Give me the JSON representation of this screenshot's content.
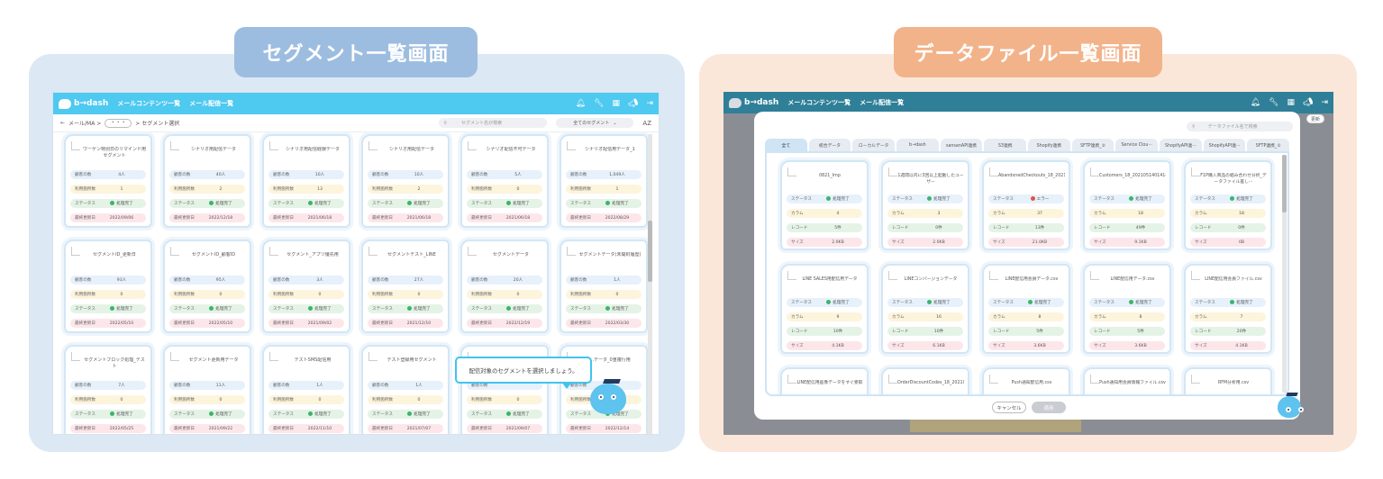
{
  "labels": {
    "left_title": "セグメント一覧画面",
    "right_title": "データファイル一覧画面"
  },
  "left_screen": {
    "brand": "b→dash",
    "nav": [
      "メールコンテンツ一覧",
      "メール配信一覧"
    ],
    "breadcrumb": {
      "back": "←",
      "path1": "メール/MA >",
      "dots": "・・・",
      "path2": "> セグメント選択"
    },
    "search_placeholder": "セグメント名が検索",
    "filter_value": "全てのセグメント",
    "sort_label": "AZ",
    "row_labels": {
      "count": "顧客の数",
      "usage": "利用箇所数",
      "status": "ステータス",
      "updated": "最終更新日"
    },
    "cards": [
      {
        "name": "ワーゲン特別日のリマインド用セグメント",
        "count": "4人",
        "usage": "1",
        "status": "処理完了",
        "updated": "2022/09/06"
      },
      {
        "name": "シナリオ用配信データ",
        "count": "40人",
        "usage": "2",
        "status": "処理完了",
        "updated": "2022/12/18"
      },
      {
        "name": "シナリオ用配信経験データ",
        "count": "10人",
        "usage": "13",
        "status": "処理完了",
        "updated": "2021/06/18"
      },
      {
        "name": "シナリオ用配信データ",
        "count": "10人",
        "usage": "2",
        "status": "処理完了",
        "updated": "2021/06/18"
      },
      {
        "name": "シナリオ配信不可データ",
        "count": "5人",
        "usage": "0",
        "status": "処理完了",
        "updated": "2021/06/18"
      },
      {
        "name": "シナリオ配信用データ_1",
        "count": "1,049人",
        "usage": "1",
        "status": "処理完了",
        "updated": "2022/08/29"
      },
      {
        "name": "セグメントID_更新日",
        "count": "93人",
        "usage": "0",
        "status": "処理完了",
        "updated": "2022/05/10"
      },
      {
        "name": "セグメントID_顧客ID",
        "count": "95人",
        "usage": "0",
        "status": "処理完了",
        "updated": "2022/05/10"
      },
      {
        "name": "セグメント_アプリ優先用",
        "count": "3人",
        "usage": "0",
        "status": "処理完了",
        "updated": "2021/09/02"
      },
      {
        "name": "セグメントテスト_LINE",
        "count": "27人",
        "usage": "0",
        "status": "処理完了",
        "updated": "2021/12/10"
      },
      {
        "name": "セグメントデータ",
        "count": "20人",
        "usage": "0",
        "status": "処理完了",
        "updated": "2022/12/19"
      },
      {
        "name": "セグメントデータ(未開封履歴)",
        "count": "1人",
        "usage": "0",
        "status": "処理完了",
        "updated": "2022/03/30"
      },
      {
        "name": "セグメントブロック処理_テスト",
        "count": "7人",
        "usage": "0",
        "status": "処理完了",
        "updated": "2022/05/25"
      },
      {
        "name": "セグメント更新用データ",
        "count": "11人",
        "usage": "0",
        "status": "処理完了",
        "updated": "2021/09/22"
      },
      {
        "name": "テストSMS配信用",
        "count": "1人",
        "usage": "0",
        "status": "処理完了",
        "updated": "2022/11/10"
      },
      {
        "name": "テスト登録用セグメント",
        "count": "1人",
        "usage": "0",
        "status": "処理完了",
        "updated": "2021/07/07"
      },
      {
        "name": "",
        "count": "",
        "usage": "0",
        "status": "処理完了",
        "updated": "2021/09/07"
      },
      {
        "name": "...データ_0重複行用",
        "count": "",
        "usage": "",
        "status": "処理完了",
        "updated": "2022/12/14"
      }
    ],
    "tooltip": "配信対象のセグメントを選択しましょう。"
  },
  "right_screen": {
    "brand": "b→dash",
    "nav": [
      "メールコンテンツ一覧",
      "メール配信一覧"
    ],
    "bg_button": "更新",
    "search_placeholder": "データファイル名で検索",
    "tabs": [
      "全て",
      "統合データ",
      "ローカルデータ",
      "b→dash",
      "sansanAPI連携",
      "S3連携",
      "Shopify連携",
      "SFTP連携_②",
      "Service Clou···",
      "ShopifyAPI連···",
      "ShopifyAPI連···",
      "SFTP連携_①"
    ],
    "row_labels": {
      "status": "ステータス",
      "columns": "カラム",
      "records": "レコード",
      "size": "サイズ"
    },
    "cards": [
      {
        "name": "0821_Imp",
        "status": "処理完了",
        "status_type": "ok",
        "columns": "4",
        "records": "5件",
        "size": "2.0KB"
      },
      {
        "name": "1週間以内に3回以上起動したユーザー",
        "status": "処理完了",
        "status_type": "ok",
        "columns": "3",
        "records": "0件",
        "size": "2.0KB"
      },
      {
        "name": "AbandonedCheckouts_18_20210513014714.csv",
        "status": "エラー",
        "status_type": "error",
        "columns": "37",
        "records": "13件",
        "size": "21.0KB"
      },
      {
        "name": "Customers_18_2021051401414.csv",
        "status": "処理完了",
        "status_type": "ok",
        "columns": "18",
        "records": "49件",
        "size": "9.1KB"
      },
      {
        "name": "F1P購入商品の組み合わせ分析_データファイル差し···",
        "status": "処理完了",
        "status_type": "ok",
        "columns": "18",
        "records": "0件",
        "size": "0B"
      },
      {
        "name": "LINE SALES用配信用データ",
        "status": "処理完了",
        "status_type": "ok",
        "columns": "9",
        "records": "10件",
        "size": "4.1KB"
      },
      {
        "name": "LINEコンバージョンデータ",
        "status": "処理完了",
        "status_type": "ok",
        "columns": "16",
        "records": "10件",
        "size": "6.1KB"
      },
      {
        "name": "LINE配信用会員データ.csv",
        "status": "処理完了",
        "status_type": "ok",
        "columns": "8",
        "records": "5件",
        "size": "3.6KB"
      },
      {
        "name": "LINE配信用データ.csv",
        "status": "処理完了",
        "status_type": "ok",
        "columns": "8",
        "records": "5件",
        "size": "3.6KB"
      },
      {
        "name": "LINE配信用会員ファイル.csv",
        "status": "処理完了",
        "status_type": "ok",
        "columns": "7",
        "records": "20件",
        "size": "4.1KB"
      },
      {
        "name": "LINE配信用画像データをすぐ受取",
        "status": "",
        "status_type": "ok",
        "columns": "",
        "records": "",
        "size": ""
      },
      {
        "name": "OrderDiscountCodes_18_20210513014747.csv",
        "status": "",
        "status_type": "ok",
        "columns": "",
        "records": "",
        "size": ""
      },
      {
        "name": "Push通知配信用.csv",
        "status": "",
        "status_type": "ok",
        "columns": "",
        "records": "",
        "size": ""
      },
      {
        "name": "Push通知用会員情報ファイル.csv",
        "status": "",
        "status_type": "ok",
        "columns": "",
        "records": "",
        "size": ""
      },
      {
        "name": "RFM分析用.csv",
        "status": "",
        "status_type": "ok",
        "columns": "",
        "records": "",
        "size": ""
      }
    ],
    "cancel_label": "キャンセル",
    "apply_label": "適用"
  },
  "colors": {
    "left_panel": "#dde8f5",
    "right_panel": "#fbe7da",
    "left_pill": "#9dbde0",
    "right_pill": "#f2b38a",
    "app_bar": "#4ec9f0",
    "ok": "#3bb56a",
    "error": "#e0524b"
  },
  "icons": [
    "bell-icon",
    "wrench-icon",
    "grid-icon",
    "megaphone-icon",
    "logout-icon",
    "search-icon",
    "mascot-icon"
  ]
}
